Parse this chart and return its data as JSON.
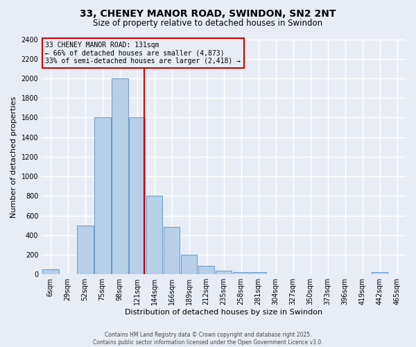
{
  "title": "33, CHENEY MANOR ROAD, SWINDON, SN2 2NT",
  "subtitle": "Size of property relative to detached houses in Swindon",
  "xlabel": "Distribution of detached houses by size in Swindon",
  "ylabel": "Number of detached properties",
  "bin_labels": [
    "6sqm",
    "29sqm",
    "52sqm",
    "75sqm",
    "98sqm",
    "121sqm",
    "144sqm",
    "166sqm",
    "189sqm",
    "212sqm",
    "235sqm",
    "258sqm",
    "281sqm",
    "304sqm",
    "327sqm",
    "350sqm",
    "373sqm",
    "396sqm",
    "419sqm",
    "442sqm",
    "465sqm"
  ],
  "bar_heights": [
    50,
    0,
    500,
    1600,
    2000,
    1600,
    800,
    480,
    200,
    85,
    35,
    25,
    20,
    5,
    5,
    0,
    0,
    0,
    0,
    20,
    0
  ],
  "bar_color": "#b8cfe8",
  "bar_edge_color": "#6699cc",
  "background_color": "#e8edf5",
  "grid_color": "#ffffff",
  "vline_bin_index": 5.4,
  "vline_color": "#cc0000",
  "ylim": [
    0,
    2400
  ],
  "yticks": [
    0,
    200,
    400,
    600,
    800,
    1000,
    1200,
    1400,
    1600,
    1800,
    2000,
    2200,
    2400
  ],
  "annotation_text": "33 CHENEY MANOR ROAD: 131sqm\n← 66% of detached houses are smaller (4,873)\n33% of semi-detached houses are larger (2,418) →",
  "annotation_box_color": "#cc0000",
  "footer_line1": "Contains HM Land Registry data © Crown copyright and database right 2025.",
  "footer_line2": "Contains public sector information licensed under the Open Government Licence v3.0.",
  "title_fontsize": 10,
  "subtitle_fontsize": 8.5,
  "ylabel_fontsize": 8,
  "xlabel_fontsize": 8,
  "tick_fontsize": 7,
  "annotation_fontsize": 7
}
